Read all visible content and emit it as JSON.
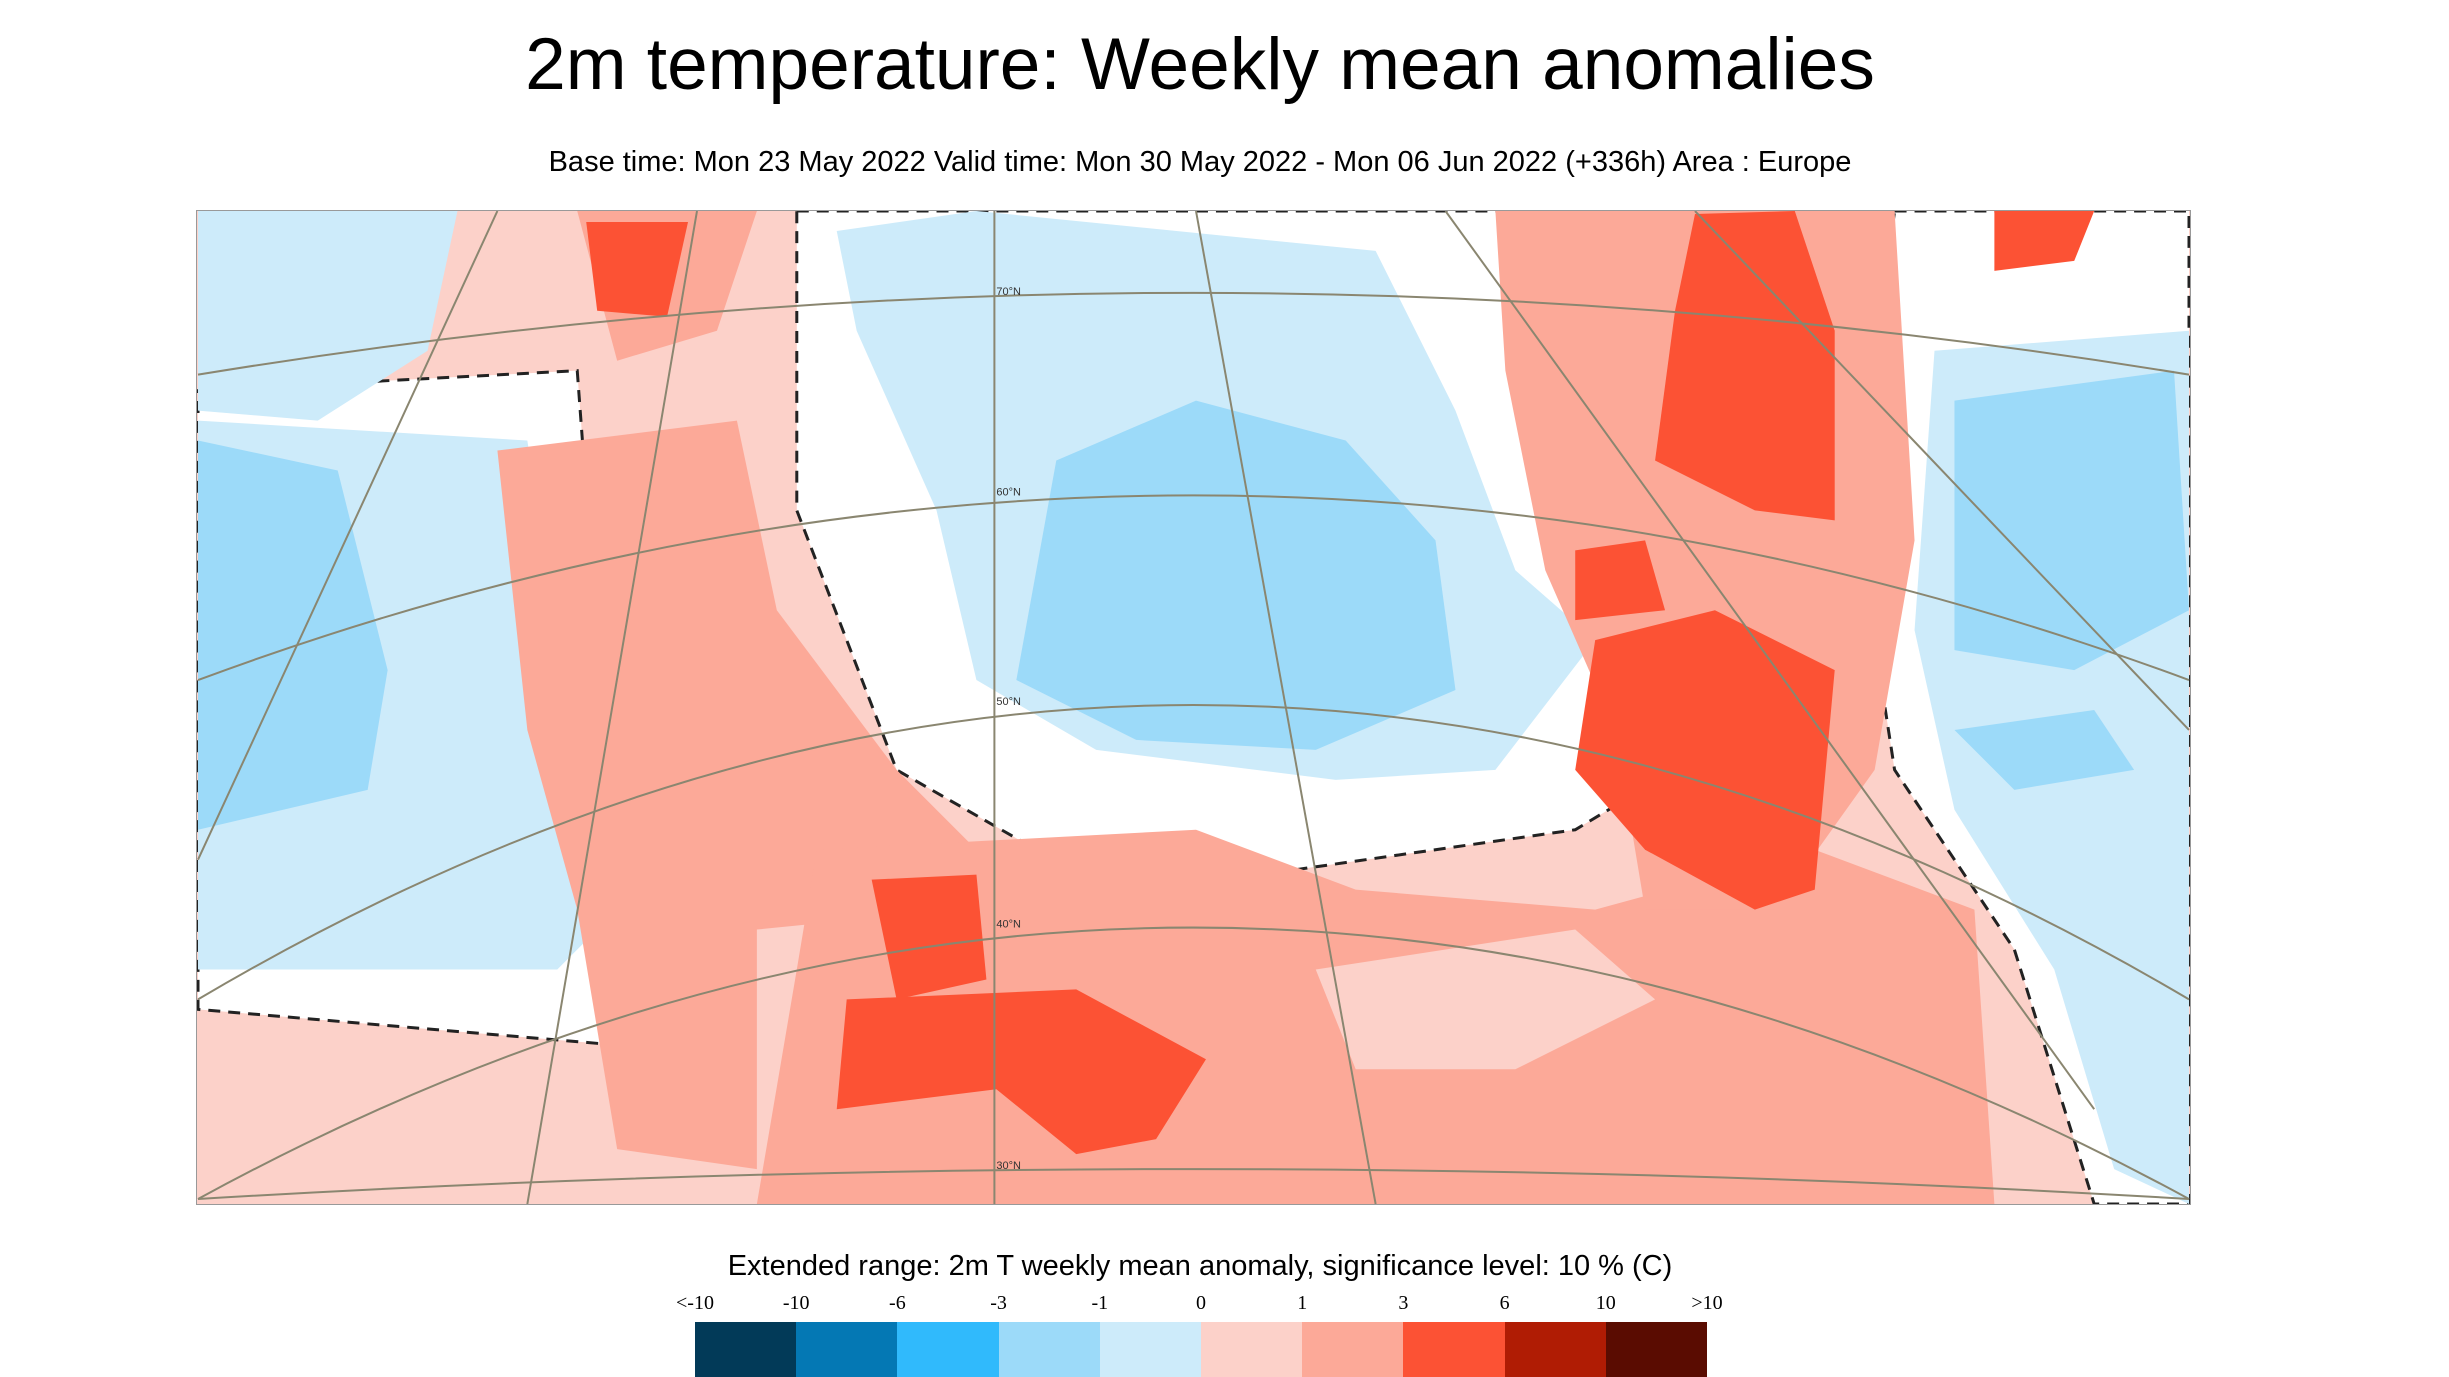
{
  "header": {
    "title": "2m temperature: Weekly mean anomalies",
    "subtitle": "Base time: Mon 23 May 2022 Valid time: Mon 30 May 2022 - Mon 06 Jun 2022 (+336h) Area : Europe"
  },
  "map": {
    "latitude_labels": [
      "70°N",
      "60°N",
      "50°N",
      "40°N",
      "30°N"
    ]
  },
  "chart_data": {
    "type": "heatmap",
    "title": "Extended range: 2m T weekly mean anomaly, significance level: 10 % (C)",
    "legend_ticks": [
      "<-10",
      "-10",
      "-6",
      "-3",
      "-1",
      "0",
      "1",
      "3",
      "6",
      "10",
      ">10"
    ],
    "legend_colors": [
      "#023a58",
      "#0478b4",
      "#30bafc",
      "#9cdaf9",
      "#cdebfa",
      "#fcd1c9",
      "#fca998",
      "#fc5234",
      "#b01c04",
      "#5a0c01"
    ],
    "legend_placement": "bottom",
    "region": "Europe"
  }
}
